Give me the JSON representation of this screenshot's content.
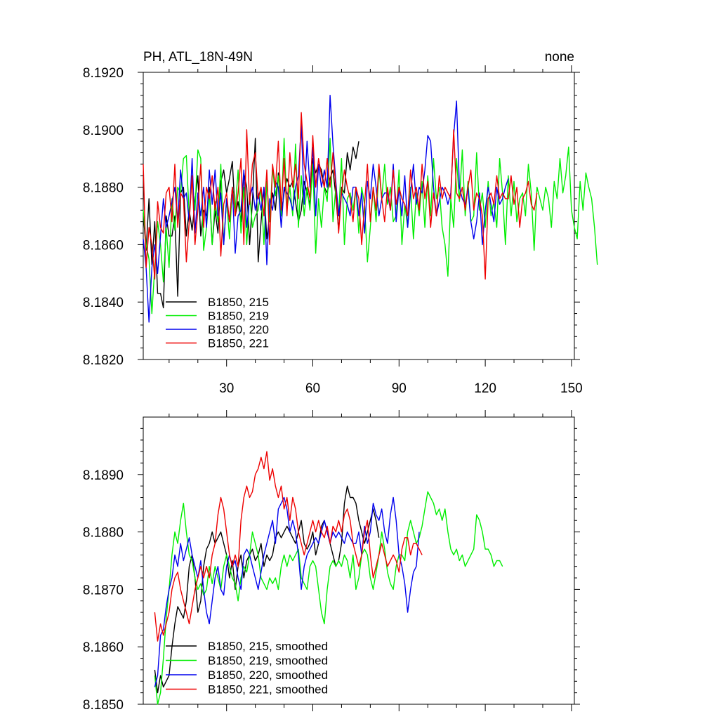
{
  "chart_data": [
    {
      "type": "line",
      "title": "PH, ATL_18N-49N",
      "title_right": "none",
      "xlim": [
        1,
        151
      ],
      "ylim": [
        8.182,
        8.192
      ],
      "x_ticks": [
        30,
        60,
        90,
        120,
        150
      ],
      "y_ticks": [
        "8.1820",
        "8.1840",
        "8.1860",
        "8.1880",
        "8.1900",
        "8.1920"
      ],
      "y_tick_values": [
        8.182,
        8.184,
        8.186,
        8.188,
        8.19,
        8.192
      ],
      "legend_position": "bottom-left",
      "series": [
        {
          "name": "B1850, 215",
          "color": "#000000",
          "x_start": 1,
          "values": [
            8.1871,
            8.1858,
            8.1876,
            8.1853,
            8.1868,
            8.1843,
            8.1843,
            8.1838,
            8.187,
            8.1863,
            8.1863,
            8.187,
            8.1842,
            8.1878,
            8.188,
            8.1863,
            8.1872,
            8.1865,
            8.1875,
            8.1884,
            8.1863,
            8.1872,
            8.187,
            8.188,
            8.186,
            8.1872,
            8.1864,
            8.1882,
            8.1886,
            8.1878,
            8.1883,
            8.1889,
            8.187,
            8.1875,
            8.1868,
            8.1885,
            8.188,
            8.186,
            8.1875,
            8.1897,
            8.1854,
            8.1868,
            8.188,
            8.1862,
            8.187,
            8.1878,
            8.1872,
            8.1885,
            8.187,
            8.1878,
            8.1883,
            8.188,
            8.1882,
            8.1875,
            8.1868,
            8.1872,
            8.1882,
            8.1878,
            8.1874,
            8.189,
            8.1885,
            8.1888,
            8.1886,
            8.188,
            8.1878,
            8.1883,
            8.1886,
            8.1877,
            8.1865,
            8.188,
            8.1878,
            8.1892,
            8.1886,
            8.1894,
            8.189,
            8.1896
          ]
        },
        {
          "name": "B1850, 219",
          "color": "#00ee00",
          "x_start": 1,
          "values": [
            8.1872,
            8.186,
            8.1855,
            8.1836,
            8.1852,
            8.1868,
            8.186,
            8.1847,
            8.1866,
            8.1852,
            8.1876,
            8.1865,
            8.188,
            8.1878,
            8.189,
            8.1891,
            8.187,
            8.1883,
            8.1872,
            8.1893,
            8.189,
            8.1858,
            8.1866,
            8.1878,
            8.186,
            8.1875,
            8.1868,
            8.1888,
            8.186,
            8.1876,
            8.1862,
            8.188,
            8.1872,
            8.1886,
            8.1864,
            8.188,
            8.186,
            8.1878,
            8.1866,
            8.187,
            8.1872,
            8.188,
            8.186,
            8.1882,
            8.1868,
            8.1887,
            8.1877,
            8.1884,
            8.187,
            8.1897,
            8.1872,
            8.188,
            8.187,
            8.1895,
            8.1866,
            8.1884,
            8.187,
            8.188,
            8.1872,
            8.1888,
            8.1857,
            8.1876,
            8.1866,
            8.188,
            8.1875,
            8.1897,
            8.1868,
            8.188,
            8.187,
            8.189,
            8.186,
            8.1876,
            8.1878,
            8.1872,
            8.188,
            8.1864,
            8.188,
            8.1874,
            8.1854,
            8.1866,
            8.188,
            8.1868,
            8.1886,
            8.1876,
            8.1888,
            8.1874,
            8.188,
            8.1868,
            8.187,
            8.1886,
            8.186,
            8.1874,
            8.1866,
            8.188,
            8.1862,
            8.1878,
            8.187,
            8.1882,
            8.1866,
            8.1884,
            8.187,
            8.189,
            8.1876,
            8.188,
            8.1866,
            8.186,
            8.1849,
            8.1876,
            8.1866,
            8.189,
            8.1875,
            8.1893,
            8.187,
            8.1882,
            8.1868,
            8.187,
            8.1892,
            8.1872,
            8.1878,
            8.1866,
            8.1882,
            8.187,
            8.1875,
            8.1866,
            8.189,
            8.1878,
            8.186,
            8.1884,
            8.187,
            8.1882,
            8.1868,
            8.1876,
            8.1878,
            8.187,
            8.1888,
            8.1878,
            8.1858,
            8.188,
            8.1876,
            8.1872,
            8.188,
            8.1876,
            8.1866,
            8.1882,
            8.1876,
            8.189,
            8.1878,
            8.1884,
            8.1894,
            8.1872,
            8.1866,
            8.1862,
            8.1882,
            8.1872,
            8.1885,
            8.188,
            8.1876,
            8.1866,
            8.1853
          ]
        },
        {
          "name": "B1850, 220",
          "color": "#0000ee",
          "x_start": 1,
          "values": [
            8.1862,
            8.1852,
            8.1833,
            8.1852,
            8.186,
            8.185,
            8.1863,
            8.1876,
            8.1866,
            8.187,
            8.1875,
            8.188,
            8.1868,
            8.1886,
            8.1876,
            8.1878,
            8.1868,
            8.189,
            8.1864,
            8.1878,
            8.187,
            8.188,
            8.1866,
            8.1886,
            8.1874,
            8.1886,
            8.187,
            8.1878,
            8.186,
            8.1876,
            8.1868,
            8.188,
            8.1857,
            8.187,
            8.1872,
            8.1886,
            8.1866,
            8.1876,
            8.188,
            8.1872,
            8.1878,
            8.1872,
            8.188,
            8.1853,
            8.1876,
            8.1872,
            8.1882,
            8.188,
            8.1866,
            8.188,
            8.1878,
            8.1876,
            8.1872,
            8.188,
            8.1884,
            8.1902,
            8.1874,
            8.1896,
            8.188,
            8.1894,
            8.187,
            8.1888,
            8.188,
            8.1886,
            8.188,
            8.1912,
            8.1895,
            8.1882,
            8.187,
            8.1878,
            8.1876,
            8.1874,
            8.187,
            8.188,
            8.188,
            8.187,
            8.1878,
            8.1864,
            8.1882,
            8.1876,
            8.1888,
            8.188,
            8.187,
            8.1876,
            8.1878,
            8.1878,
            8.1872,
            8.1888,
            8.1868,
            8.188,
            8.187,
            8.1884,
            8.1866,
            8.1878,
            8.1888,
            8.1874,
            8.188,
            8.1878,
            8.1886,
            8.1898,
            8.1896,
            8.188,
            8.187,
            8.1875,
            8.188,
            8.1878,
            8.1874,
            8.1878,
            8.1898,
            8.191,
            8.188,
            8.1876,
            8.1874,
            8.188,
            8.1868,
            8.1862,
            8.1868,
            8.1878,
            8.186,
            8.1872,
            8.188,
            8.1874,
            8.1868,
            8.188,
            8.1874,
            8.1876,
            8.188,
            8.1883
          ]
        },
        {
          "name": "B1850, 221",
          "color": "#ee0000",
          "x_start": 1,
          "values": [
            8.1888,
            8.1852,
            8.1866,
            8.186,
            8.1848,
            8.1875,
            8.1866,
            8.1864,
            8.1878,
            8.188,
            8.1868,
            8.1888,
            8.1866,
            8.1878,
            8.1876,
            8.1854,
            8.1868,
            8.1884,
            8.186,
            8.1872,
            8.1888,
            8.1866,
            8.188,
            8.1876,
            8.1884,
            8.1872,
            8.188,
            8.1856,
            8.1874,
            8.1878,
            8.1868,
            8.188,
            8.187,
            8.1878,
            8.189,
            8.186,
            8.19,
            8.1874,
            8.1888,
            8.1892,
            8.1876,
            8.188,
            8.187,
            8.1886,
            8.186,
            8.1888,
            8.188,
            8.1896,
            8.1872,
            8.189,
            8.187,
            8.1892,
            8.188,
            8.1888,
            8.1876,
            8.1906,
            8.1888,
            8.1882,
            8.1876,
            8.1898,
            8.188,
            8.189,
            8.1884,
            8.188,
            8.189,
            8.188,
            8.1892,
            8.188,
            8.1864,
            8.1878,
            8.1886,
            8.188,
            8.1876,
            8.1868,
            8.188,
            8.1876,
            8.186,
            8.1874,
            8.1888,
            8.1868,
            8.188,
            8.1872,
            8.1888,
            8.1876,
            8.1868,
            8.188,
            8.1872,
            8.1886,
            8.1874,
            8.188,
            8.1876,
            8.1874,
            8.187,
            8.1886,
            8.1876,
            8.188,
            8.1872,
            8.1888,
            8.1876,
            8.1882,
            8.1866,
            8.1878,
            8.187,
            8.1884,
            8.1876,
            8.188,
            8.1878,
            8.1876,
            8.19,
            8.1878,
            8.1876,
            8.188,
            8.1872,
            8.188,
            8.1886,
            8.1872,
            8.1878,
            8.1876,
            8.187,
            8.1848,
            8.1876,
            8.1878,
            8.1874,
            8.1884,
            8.1876,
            8.1878,
            8.1876,
            8.1876,
            8.1884,
            8.1874,
            8.188,
            8.1866,
            8.1876,
            8.1878,
            8.1882,
            8.1874,
            8.1872,
            8.1878
          ]
        }
      ]
    },
    {
      "type": "line",
      "title": "",
      "xlim": [
        1,
        151
      ],
      "ylim": [
        8.185,
        8.19
      ],
      "y_ticks": [
        "8.1850",
        "8.1860",
        "8.1870",
        "8.1880",
        "8.1890"
      ],
      "y_tick_values": [
        8.185,
        8.186,
        8.187,
        8.188,
        8.189
      ],
      "legend_position": "bottom-left",
      "series": [
        {
          "name": "B1850, 215, smoothed",
          "color": "#000000",
          "x_start": 5,
          "values": [
            8.1856,
            8.1852,
            8.1855,
            8.1853,
            8.1854,
            8.1855,
            8.186,
            8.1864,
            8.1867,
            8.1866,
            8.1865,
            8.1868,
            8.1874,
            8.1876,
            8.1872,
            8.1866,
            8.1868,
            8.1874,
            8.1877,
            8.1878,
            8.188,
            8.1878,
            8.1879,
            8.188,
            8.1878,
            8.1876,
            8.1872,
            8.1875,
            8.187,
            8.1874,
            8.1876,
            8.1872,
            8.1875,
            8.1876,
            8.1877,
            8.1875,
            8.1876,
            8.1878,
            8.1874,
            8.1876,
            8.1875,
            8.1876,
            8.1879,
            8.188,
            8.1879,
            8.188,
            8.1881,
            8.188,
            8.1879,
            8.1878,
            8.188,
            8.1882,
            8.1878,
            8.1877,
            8.1878,
            8.188,
            8.1876,
            8.1878,
            8.1881,
            8.1882,
            8.188,
            8.1878,
            8.1876,
            8.1874,
            8.1875,
            8.1878,
            8.1885,
            8.1888,
            8.1886,
            8.1886,
            8.1885,
            8.1882,
            8.188,
            8.1878,
            8.188,
            8.1882,
            8.1884,
            8.1882,
            8.1879
          ]
        },
        {
          "name": "B1850, 219, smoothed",
          "color": "#00ee00",
          "x_start": 5,
          "values": [
            8.1855,
            8.185,
            8.1852,
            8.1858,
            8.1865,
            8.187,
            8.1876,
            8.188,
            8.1878,
            8.1882,
            8.1885,
            8.188,
            8.1876,
            8.1875,
            8.1872,
            8.187,
            8.1871,
            8.1869,
            8.187,
            8.1874,
            8.1871,
            8.1874,
            8.1872,
            8.187,
            8.1874,
            8.1876,
            8.1874,
            8.1872,
            8.1871,
            8.1868,
            8.1872,
            8.1874,
            8.1873,
            8.1876,
            8.188,
            8.1878,
            8.1876,
            8.1872,
            8.1871,
            8.187,
            8.1872,
            8.1871,
            8.1872,
            8.187,
            8.1874,
            8.1876,
            8.1874,
            8.1876,
            8.1875,
            8.1876,
            8.1877,
            8.1872,
            8.1871,
            8.187,
            8.1874,
            8.1875,
            8.1874,
            8.187,
            8.1866,
            8.1864,
            8.187,
            8.1874,
            8.1875,
            8.1874,
            8.1875,
            8.1874,
            8.1876,
            8.1875,
            8.1872,
            8.1876,
            8.187,
            8.1872,
            8.1876,
            8.1877,
            8.1876,
            8.1872,
            8.187,
            8.1873,
            8.1876,
            8.188,
            8.1877,
            8.1873,
            8.1871,
            8.187,
            8.1874,
            8.1876,
            8.1876,
            8.1875,
            8.188,
            8.1882,
            8.188,
            8.1878,
            8.1879,
            8.1881,
            8.1884,
            8.1887,
            8.1886,
            8.1885,
            8.1883,
            8.1884,
            8.1882,
            8.1884,
            8.188,
            8.1877,
            8.1876,
            8.1877,
            8.1875,
            8.1876,
            8.1874,
            8.1875,
            8.1876,
            8.1877,
            8.1883,
            8.1882,
            8.188,
            8.1877,
            8.1877,
            8.1876,
            8.1874,
            8.1875,
            8.1875,
            8.1874
          ]
        },
        {
          "name": "B1850, 220, smoothed",
          "color": "#0000ee",
          "x_start": 5,
          "values": [
            8.1853,
            8.1855,
            8.1862,
            8.1863,
            8.1867,
            8.187,
            8.1872,
            8.1876,
            8.1874,
            8.1878,
            8.1875,
            8.1877,
            8.1879,
            8.1876,
            8.1874,
            8.1872,
            8.1875,
            8.187,
            8.1866,
            8.1864,
            8.1868,
            8.1872,
            8.1874,
            8.187,
            8.1869,
            8.1874,
            8.1876,
            8.1874,
            8.1875,
            8.1872,
            8.187,
            8.1876,
            8.1877,
            8.1876,
            8.1874,
            8.1872,
            8.187,
            8.1873,
            8.1876,
            8.1878,
            8.188,
            8.1882,
            8.1878,
            8.1884,
            8.1885,
            8.1886,
            8.1884,
            8.188,
            8.1882,
            8.188,
            8.1876,
            8.187,
            8.1874,
            8.1876,
            8.1877,
            8.1878,
            8.1879,
            8.1878,
            8.188,
            8.1882,
            8.188,
            8.1878,
            8.188,
            8.1879,
            8.188,
            8.1879,
            8.1878,
            8.188,
            8.1879,
            8.1878,
            8.1878,
            8.188,
            8.1876,
            8.1881,
            8.1878,
            8.188,
            8.1885,
            8.1883,
            8.1882,
            8.1884,
            8.188,
            8.1878,
            8.1883,
            8.1886,
            8.1882,
            8.1876,
            8.1874,
            8.1871,
            8.1866,
            8.187,
            8.1873,
            8.1874,
            8.188
          ]
        },
        {
          "name": "B1850, 221, smoothed",
          "color": "#ee0000",
          "x_start": 5,
          "values": [
            8.1866,
            8.1861,
            8.1864,
            8.1862,
            8.1864,
            8.1866,
            8.187,
            8.1872,
            8.1873,
            8.187,
            8.1868,
            8.1866,
            8.1864,
            8.1867,
            8.187,
            8.1872,
            8.1874,
            8.1872,
            8.1874,
            8.1872,
            8.1876,
            8.1878,
            8.1883,
            8.1886,
            8.1884,
            8.188,
            8.1876,
            8.1874,
            8.1876,
            8.1874,
            8.1882,
            8.1886,
            8.1888,
            8.1886,
            8.1887,
            8.189,
            8.1891,
            8.1893,
            8.1891,
            8.1894,
            8.1889,
            8.1891,
            8.1888,
            8.1886,
            8.1888,
            8.1884,
            8.1886,
            8.1882,
            8.1886,
            8.1884,
            8.188,
            8.1878,
            8.1876,
            8.1878,
            8.188,
            8.1882,
            8.188,
            8.1882,
            8.188,
            8.1879,
            8.1881,
            8.1878,
            8.1881,
            8.188,
            8.1882,
            8.188,
            8.1883,
            8.1884,
            8.1882,
            8.1878,
            8.1876,
            8.1874,
            8.1876,
            8.188,
            8.1882,
            8.1876,
            8.1872,
            8.1874,
            8.1876,
            8.1878,
            8.1876,
            8.1874,
            8.1875,
            8.1876,
            8.1875,
            8.1873,
            8.1877,
            8.1879,
            8.1879,
            8.1876,
            8.1878,
            8.1878,
            8.1877,
            8.1876
          ]
        }
      ]
    }
  ]
}
